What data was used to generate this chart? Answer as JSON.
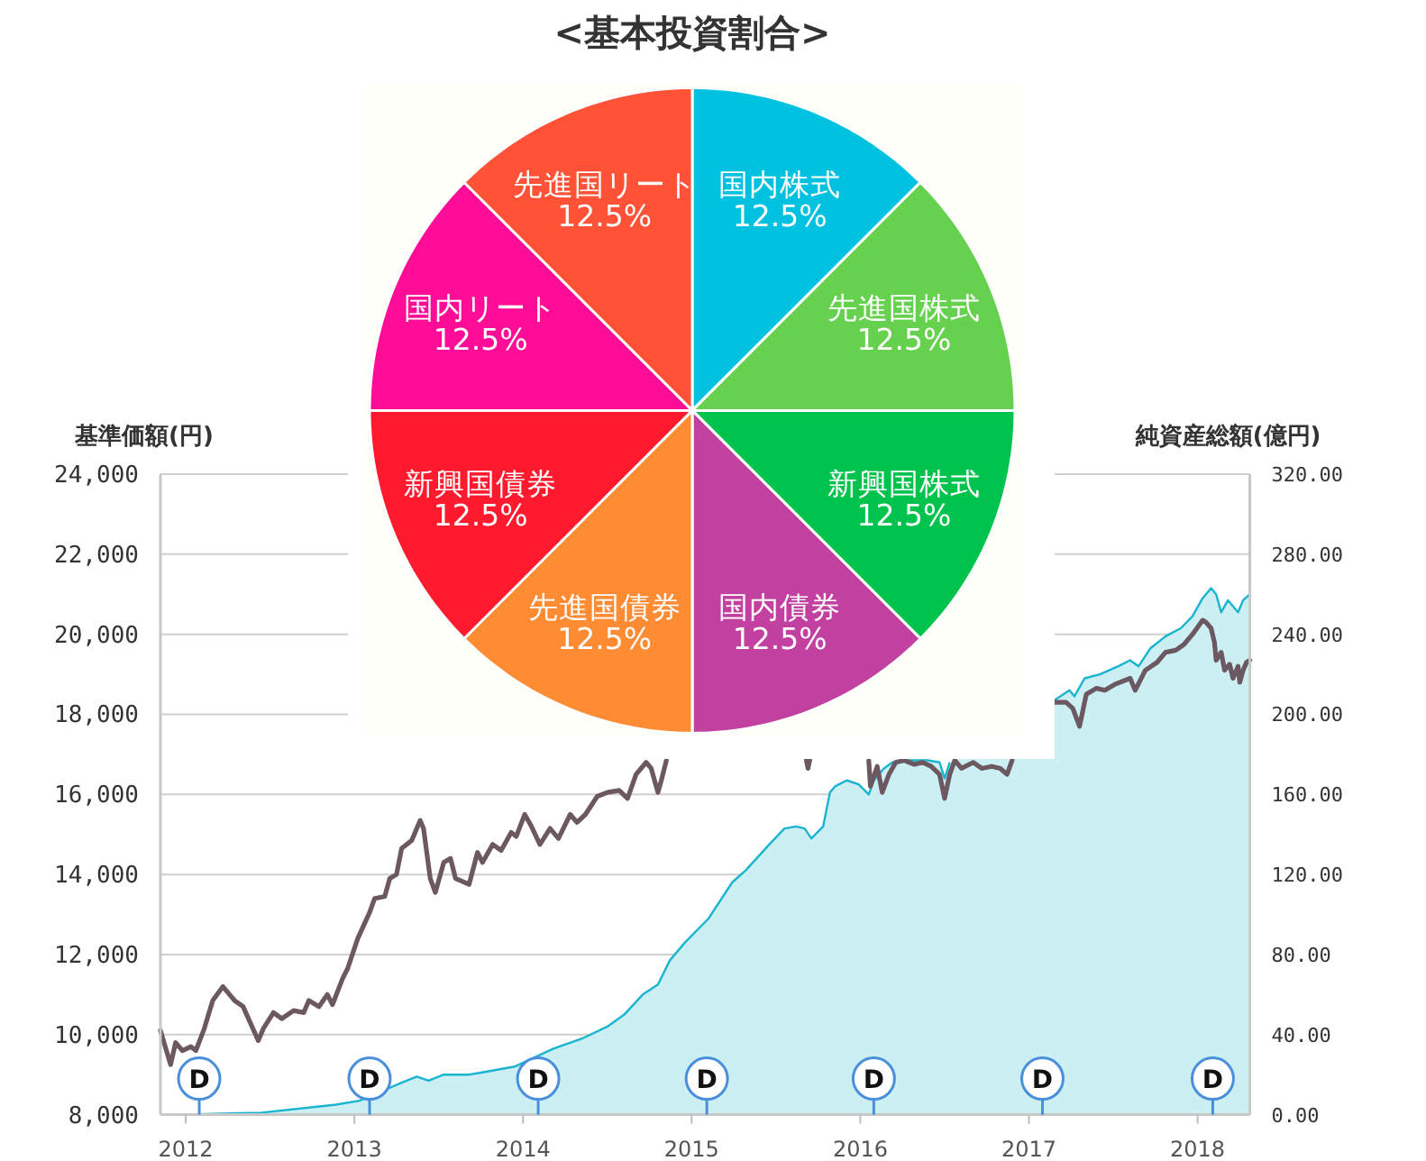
{
  "chart_data": [
    {
      "type": "pie",
      "title": "<基本投資割合>",
      "categories": [
        "国内株式",
        "先進国株式",
        "新興国株式",
        "国内債券",
        "先進国債券",
        "新興国債券",
        "国内リート",
        "先進国リート"
      ],
      "values": [
        12.5,
        12.5,
        12.5,
        12.5,
        12.5,
        12.5,
        12.5,
        12.5
      ],
      "colors": [
        "#00c2e0",
        "#66d14f",
        "#00c34d",
        "#c2409f",
        "#ff8b33",
        "#ff1a2e",
        "#ff0d96",
        "#ff5236"
      ],
      "value_labels": [
        "12.5%",
        "12.5%",
        "12.5%",
        "12.5%",
        "12.5%",
        "12.5%",
        "12.5%",
        "12.5%"
      ]
    },
    {
      "type": "line",
      "ylabel": "基準価額(円)",
      "y2label": "純資産総額(億円)",
      "xlim": [
        2011.85,
        2018.31
      ],
      "xticks": [
        2012,
        2013,
        2014,
        2015,
        2016,
        2017,
        2018
      ],
      "ylim": [
        8000,
        24000
      ],
      "yticks": [
        {
          "value": 8000,
          "label": "8,000"
        },
        {
          "value": 10000,
          "label": "10,000"
        },
        {
          "value": 12000,
          "label": "12,000"
        },
        {
          "value": 14000,
          "label": "14,000"
        },
        {
          "value": 16000,
          "label": "16,000"
        },
        {
          "value": 18000,
          "label": "18,000"
        },
        {
          "value": 20000,
          "label": "20,000"
        },
        {
          "value": 22000,
          "label": "22,000"
        },
        {
          "value": 24000,
          "label": "24,000"
        }
      ],
      "y2lim": [
        0,
        320
      ],
      "y2ticks": [
        {
          "value": 0,
          "label": "0.00"
        },
        {
          "value": 40,
          "label": "40.00"
        },
        {
          "value": 80,
          "label": "80.00"
        },
        {
          "value": 120,
          "label": "120.00"
        },
        {
          "value": 160,
          "label": "160.00"
        },
        {
          "value": 200,
          "label": "200.00"
        },
        {
          "value": 240,
          "label": "240.00"
        },
        {
          "value": 280,
          "label": "280.00"
        },
        {
          "value": 320,
          "label": "320.00"
        }
      ],
      "grid": "y",
      "series": [
        {
          "type": "area",
          "axis": "y2",
          "color": "#19b4cf",
          "x": [
            2011.96,
            2012.45,
            2012.89,
            2013.03,
            2013.28,
            2013.37,
            2013.44,
            2013.53,
            2013.68,
            2013.75,
            2013.95,
            2014.18,
            2014.35,
            2014.5,
            2014.6,
            2014.71,
            2014.8,
            2014.87,
            2014.96,
            2015.1,
            2015.24,
            2015.32,
            2015.46,
            2015.55,
            2015.62,
            2015.67,
            2015.71,
            2015.78,
            2015.82,
            2015.85,
            2015.92,
            2015.99,
            2016.05,
            2016.08,
            2016.14,
            2016.19,
            2016.24,
            2016.32,
            2016.4,
            2016.47,
            2016.5,
            2016.53,
            null,
            2017.15,
            2017.24,
            2017.27,
            2017.33,
            2017.42,
            2017.53,
            2017.6,
            2017.65,
            2017.72,
            2017.81,
            2017.9,
            2017.97,
            2018.03,
            2018.08,
            2018.11,
            2018.14,
            2018.18,
            2018.21,
            2018.24,
            2018.27,
            2018.31
          ],
          "values": [
            0,
            1,
            5,
            7,
            16,
            19,
            17,
            20,
            20,
            21,
            24,
            33,
            38,
            44,
            50,
            60,
            65,
            77,
            86,
            98,
            116,
            122,
            135,
            143,
            144,
            143,
            138,
            144,
            161,
            164,
            167,
            165,
            160,
            167,
            173,
            176,
            177,
            177,
            177,
            176,
            168,
            176,
            null,
            207,
            212,
            209,
            218,
            220,
            224,
            227,
            224,
            233,
            239,
            243,
            249,
            258,
            263,
            260,
            251,
            257,
            254,
            251,
            257,
            260
          ]
        },
        {
          "type": "line",
          "color": "#6b5860",
          "x": [
            2011.85,
            2011.91,
            2011.94,
            2011.98,
            2012.03,
            2012.06,
            2012.11,
            2012.16,
            2012.22,
            2012.25,
            2012.29,
            2012.34,
            2012.43,
            2012.46,
            2012.52,
            2012.57,
            2012.64,
            2012.7,
            2012.73,
            2012.79,
            2012.84,
            2012.87,
            2012.93,
            2012.96,
            2013.02,
            2013.09,
            2013.12,
            2013.18,
            2013.21,
            2013.25,
            2013.28,
            2013.34,
            2013.39,
            2013.41,
            2013.45,
            2013.48,
            2013.53,
            2013.57,
            2013.6,
            2013.68,
            2013.73,
            2013.76,
            2013.82,
            2013.87,
            2013.93,
            2013.96,
            2014.01,
            2014.05,
            2014.1,
            2014.16,
            2014.21,
            2014.28,
            2014.32,
            2014.37,
            2014.44,
            2014.5,
            2014.57,
            2014.62,
            2014.67,
            2014.73,
            2014.76,
            2014.8,
            2014.82,
            2014.85,
            null,
            2015.68,
            2015.69,
            2015.7,
            null,
            2016.05,
            2016.06,
            2016.1,
            2016.13,
            2016.17,
            2016.21,
            2016.26,
            2016.32,
            2016.37,
            2016.42,
            2016.47,
            2016.5,
            2016.53,
            2016.56,
            2016.6,
            2016.67,
            2016.72,
            2016.78,
            2016.83,
            2016.87,
            2016.9,
            null,
            2017.15,
            2017.22,
            2017.26,
            2017.3,
            2017.34,
            2017.4,
            2017.45,
            2017.51,
            2017.6,
            2017.63,
            2017.69,
            2017.76,
            2017.81,
            2017.87,
            2017.92,
            2017.97,
            2018.03,
            2018.05,
            2018.08,
            2018.1,
            2018.11,
            2018.14,
            2018.16,
            2018.19,
            2018.21,
            2018.24,
            2018.25,
            2018.27,
            2018.29,
            2018.31
          ],
          "values": [
            10100,
            9250,
            9800,
            9600,
            9700,
            9600,
            10150,
            10850,
            11200,
            11050,
            10850,
            10700,
            9850,
            10150,
            10550,
            10400,
            10600,
            10550,
            10850,
            10700,
            11000,
            10750,
            11400,
            11650,
            12400,
            13050,
            13400,
            13450,
            13900,
            14000,
            14650,
            14850,
            15350,
            15150,
            13900,
            13550,
            14300,
            14400,
            13900,
            13750,
            14550,
            14300,
            14750,
            14600,
            15050,
            14950,
            15500,
            15200,
            14750,
            15150,
            14900,
            15500,
            15300,
            15500,
            15950,
            16050,
            16100,
            15900,
            16500,
            16800,
            16650,
            16050,
            16350,
            16850,
            null,
            16850,
            16650,
            16850,
            null,
            16850,
            16200,
            16700,
            16050,
            16500,
            16800,
            16850,
            16750,
            16800,
            16700,
            16500,
            15900,
            16500,
            16850,
            16650,
            16800,
            16650,
            16700,
            16650,
            16500,
            16850,
            null,
            18300,
            18300,
            18150,
            17700,
            18500,
            18650,
            18600,
            18750,
            18900,
            18600,
            19100,
            19300,
            19550,
            19600,
            19750,
            20000,
            20350,
            20300,
            20150,
            19800,
            19350,
            19550,
            19100,
            19250,
            18900,
            19200,
            18800,
            19100,
            19300,
            19350
          ]
        }
      ],
      "annotations": [
        {
          "text": "D",
          "x": 2012.08
        },
        {
          "text": "D",
          "x": 2013.09
        },
        {
          "text": "D",
          "x": 2014.09
        },
        {
          "text": "D",
          "x": 2015.09
        },
        {
          "text": "D",
          "x": 2016.08
        },
        {
          "text": "D",
          "x": 2017.08
        },
        {
          "text": "D",
          "x": 2018.09
        }
      ]
    }
  ]
}
